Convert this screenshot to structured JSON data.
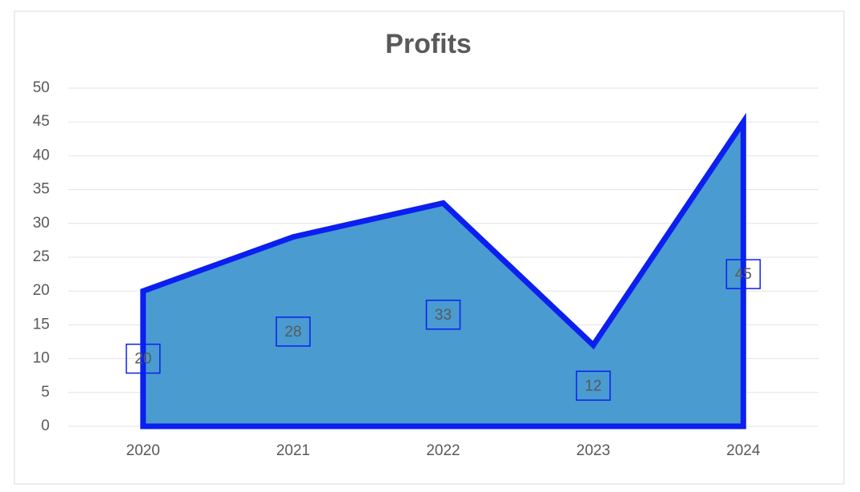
{
  "chart_data": {
    "type": "area",
    "title": "Profits",
    "categories": [
      "2020",
      "2021",
      "2022",
      "2023",
      "2024"
    ],
    "values": [
      20,
      28,
      33,
      12,
      45
    ],
    "color": "#4a9bd0",
    "line_color": "#0a1ff0",
    "ylim": [
      0,
      50
    ],
    "yticks": [
      0,
      5,
      10,
      15,
      20,
      25,
      30,
      35,
      40,
      45,
      50
    ],
    "grid": true
  }
}
